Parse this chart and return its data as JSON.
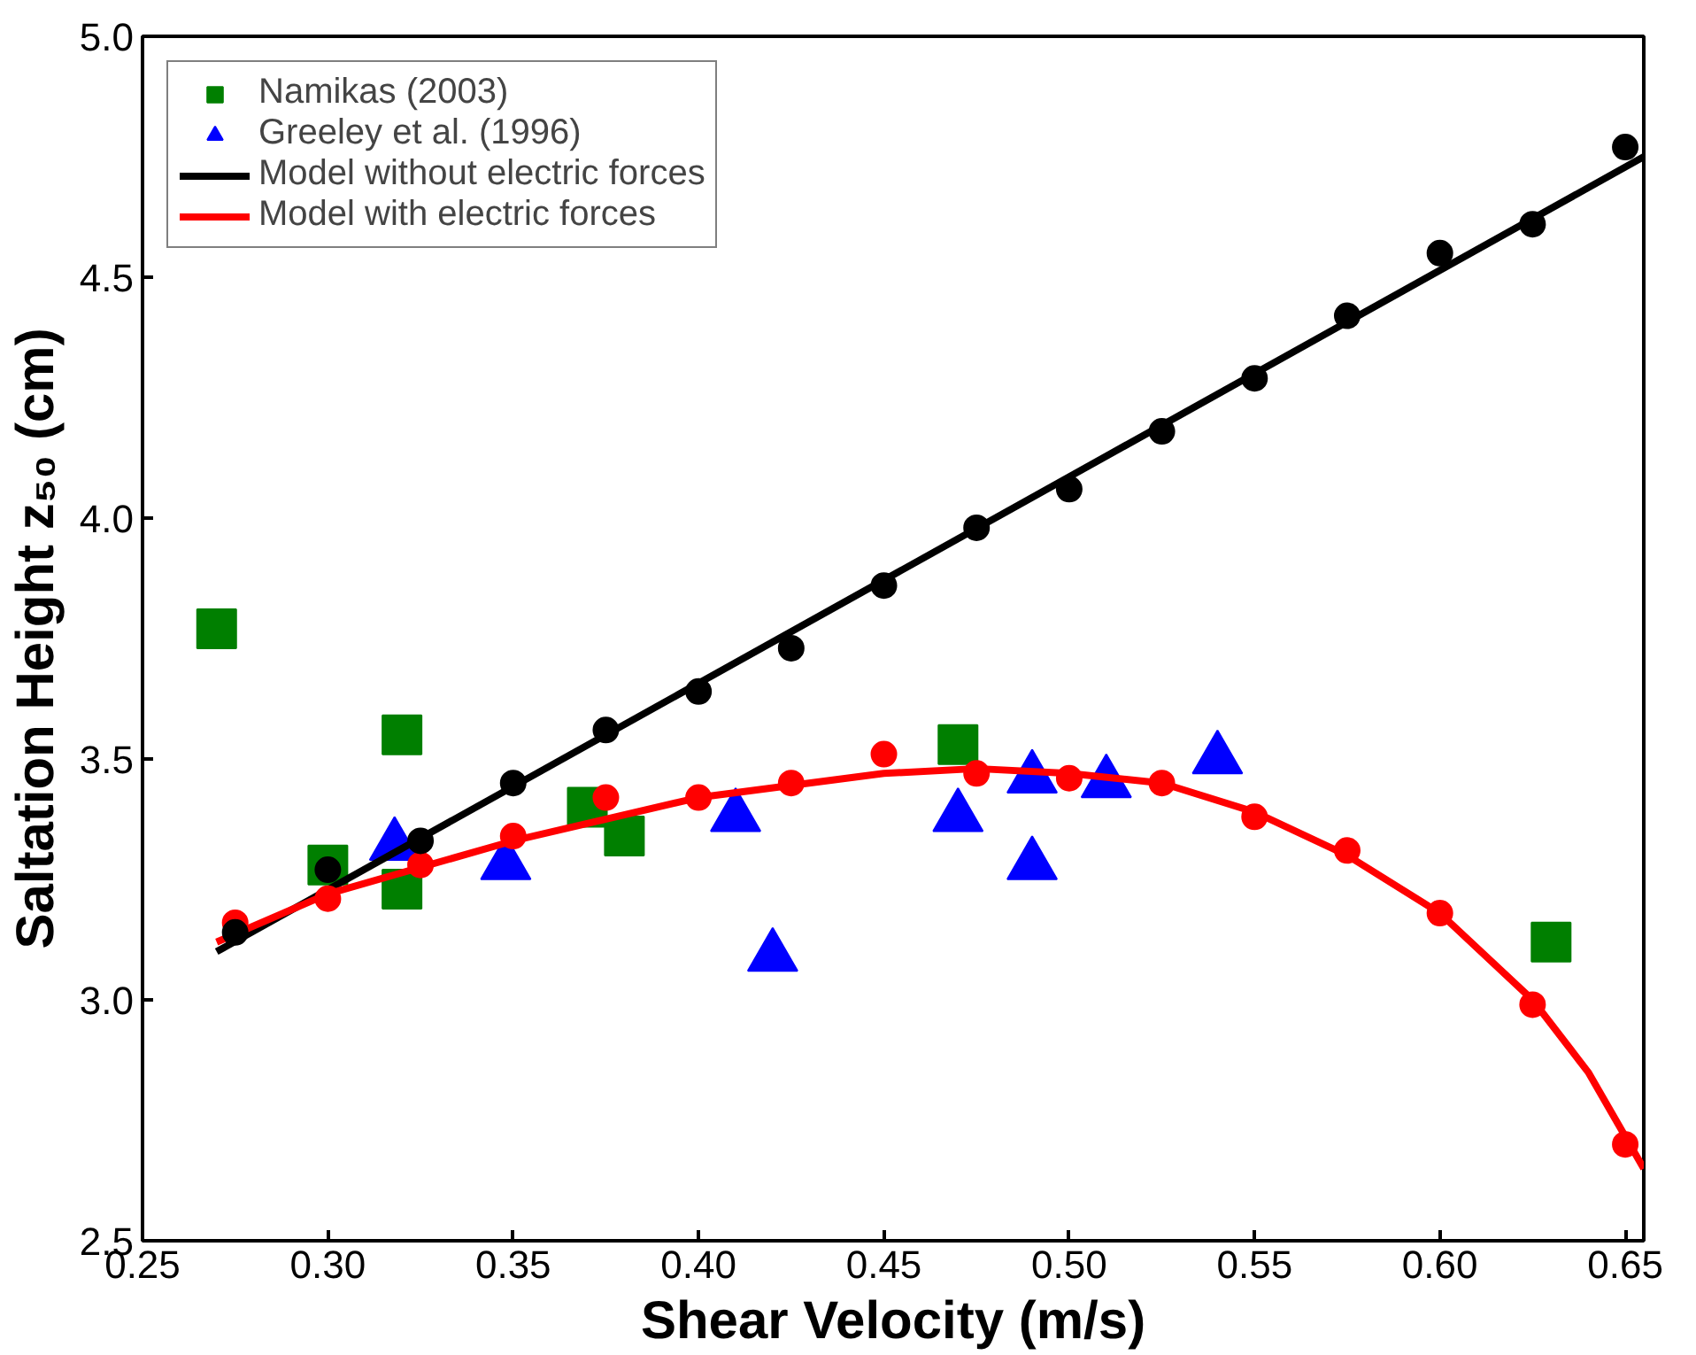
{
  "chart_data": {
    "type": "scatter",
    "xlabel": "Shear Velocity (m/s)",
    "ylabel": "Saltation Height z₅₀ (cm)",
    "xlim": [
      0.25,
      0.655
    ],
    "ylim": [
      2.5,
      5.0
    ],
    "xticks": [
      0.25,
      {
        "value": 0.3,
        "label": "0.30"
      },
      0.35,
      {
        "value": 0.4,
        "label": "0.40"
      },
      0.45,
      {
        "value": 0.5,
        "label": "0.50"
      },
      0.55,
      {
        "value": 0.6,
        "label": "0.60"
      },
      0.65
    ],
    "yticks": [
      2.5,
      {
        "value": 3.0,
        "label": "3.0"
      },
      3.5,
      {
        "value": 4.0,
        "label": "4.0"
      },
      4.5,
      {
        "value": 5.0,
        "label": "5.0"
      }
    ],
    "grid": false,
    "legend": "top left",
    "series": [
      {
        "name": "Namikas (2003)",
        "marker": "square",
        "color": "#007f00",
        "x": [
          0.27,
          0.3,
          0.32,
          0.32,
          0.37,
          0.38,
          0.47,
          0.63
        ],
        "values": [
          3.77,
          3.28,
          3.55,
          3.23,
          3.4,
          3.34,
          3.53,
          3.12
        ]
      },
      {
        "name": "Greeley et al. (1996)",
        "marker": "triangle",
        "color": "#0000ff",
        "x": [
          0.318,
          0.348,
          0.41,
          0.42,
          0.47,
          0.49,
          0.49,
          0.51,
          0.54
        ],
        "values": [
          3.32,
          3.28,
          3.38,
          3.09,
          3.38,
          3.46,
          3.28,
          3.45,
          3.5
        ]
      },
      {
        "name": "Model without electric forces",
        "type": "line",
        "color": "#000000",
        "x": [
          0.27,
          0.655
        ],
        "values": [
          3.1,
          4.75
        ]
      },
      {
        "name": "Model with electric forces",
        "type": "line",
        "color": "#ff0000",
        "x": [
          0.27,
          0.3,
          0.35,
          0.4,
          0.45,
          0.475,
          0.5,
          0.525,
          0.55,
          0.575,
          0.6,
          0.625,
          0.64,
          0.655
        ],
        "values": [
          3.12,
          3.22,
          3.33,
          3.42,
          3.47,
          3.48,
          3.47,
          3.45,
          3.39,
          3.3,
          3.18,
          3.0,
          2.85,
          2.65
        ]
      },
      {
        "marker": "circle",
        "color": "#ff0000",
        "x": [
          0.275,
          0.3,
          0.325,
          0.35,
          0.375,
          0.4,
          0.425,
          0.45,
          0.475,
          0.5,
          0.525,
          0.55,
          0.575,
          0.6,
          0.625,
          0.65
        ],
        "values": [
          3.16,
          3.21,
          3.28,
          3.34,
          3.42,
          3.42,
          3.45,
          3.51,
          3.47,
          3.46,
          3.45,
          3.38,
          3.31,
          3.18,
          2.99,
          2.7
        ]
      },
      {
        "marker": "circle",
        "color": "#000000",
        "x": [
          0.275,
          0.3,
          0.325,
          0.35,
          0.375,
          0.4,
          0.425,
          0.45,
          0.475,
          0.5,
          0.525,
          0.55,
          0.575,
          0.6,
          0.625,
          0.65
        ],
        "values": [
          3.14,
          3.27,
          3.33,
          3.45,
          3.56,
          3.64,
          3.73,
          3.86,
          3.98,
          4.06,
          4.18,
          4.29,
          4.42,
          4.55,
          4.61,
          4.77
        ]
      }
    ]
  }
}
